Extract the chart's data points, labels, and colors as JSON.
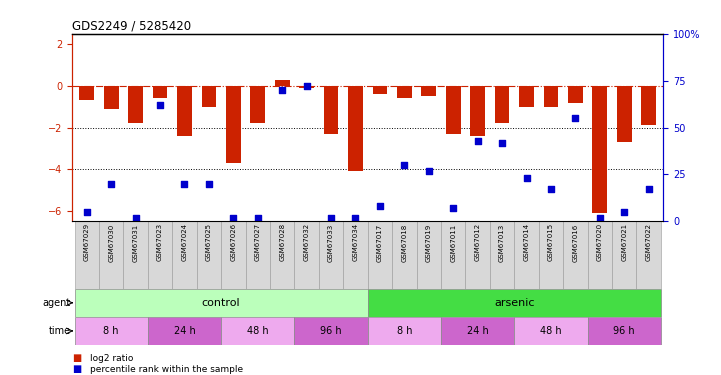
{
  "title": "GDS2249 / 5285420",
  "samples": [
    "GSM67029",
    "GSM67030",
    "GSM67031",
    "GSM67023",
    "GSM67024",
    "GSM67025",
    "GSM67026",
    "GSM67027",
    "GSM67028",
    "GSM67032",
    "GSM67033",
    "GSM67034",
    "GSM67017",
    "GSM67018",
    "GSM67019",
    "GSM67011",
    "GSM67012",
    "GSM67013",
    "GSM67014",
    "GSM67015",
    "GSM67016",
    "GSM67020",
    "GSM67021",
    "GSM67022"
  ],
  "log2_ratio": [
    -0.7,
    -1.1,
    -1.8,
    -0.6,
    -2.4,
    -1.0,
    -3.7,
    -1.8,
    0.3,
    -0.1,
    -2.3,
    -4.1,
    -0.4,
    -0.6,
    -0.5,
    -2.3,
    -2.4,
    -1.8,
    -1.0,
    -1.0,
    -0.8,
    -6.1,
    -2.7,
    -1.9
  ],
  "percentile_rank": [
    5,
    20,
    2,
    62,
    20,
    20,
    2,
    2,
    70,
    72,
    2,
    2,
    8,
    30,
    27,
    7,
    43,
    42,
    23,
    17,
    55,
    2,
    5,
    17
  ],
  "ylim_left": [
    -6.5,
    2.5
  ],
  "ylim_right": [
    0,
    100
  ],
  "yticks_left": [
    -6,
    -4,
    -2,
    0,
    2
  ],
  "yticks_right": [
    0,
    25,
    50,
    75,
    100
  ],
  "bar_color": "#cc2200",
  "dot_color": "#0000cc",
  "dotted_lines": [
    -2,
    -4
  ],
  "agent_groups": [
    {
      "label": "control",
      "start": 0,
      "end": 11,
      "color": "#bbffbb"
    },
    {
      "label": "arsenic",
      "start": 12,
      "end": 23,
      "color": "#44dd44"
    }
  ],
  "time_groups": [
    {
      "label": "8 h",
      "start": 0,
      "end": 2,
      "color": "#eeaaee"
    },
    {
      "label": "24 h",
      "start": 3,
      "end": 5,
      "color": "#cc66cc"
    },
    {
      "label": "48 h",
      "start": 6,
      "end": 8,
      "color": "#eeaaee"
    },
    {
      "label": "96 h",
      "start": 9,
      "end": 11,
      "color": "#cc66cc"
    },
    {
      "label": "8 h",
      "start": 12,
      "end": 14,
      "color": "#eeaaee"
    },
    {
      "label": "24 h",
      "start": 15,
      "end": 17,
      "color": "#cc66cc"
    },
    {
      "label": "48 h",
      "start": 18,
      "end": 20,
      "color": "#eeaaee"
    },
    {
      "label": "96 h",
      "start": 21,
      "end": 23,
      "color": "#cc66cc"
    }
  ],
  "legend_items": [
    {
      "label": "log2 ratio",
      "color": "#cc2200"
    },
    {
      "label": "percentile rank within the sample",
      "color": "#0000cc"
    }
  ]
}
